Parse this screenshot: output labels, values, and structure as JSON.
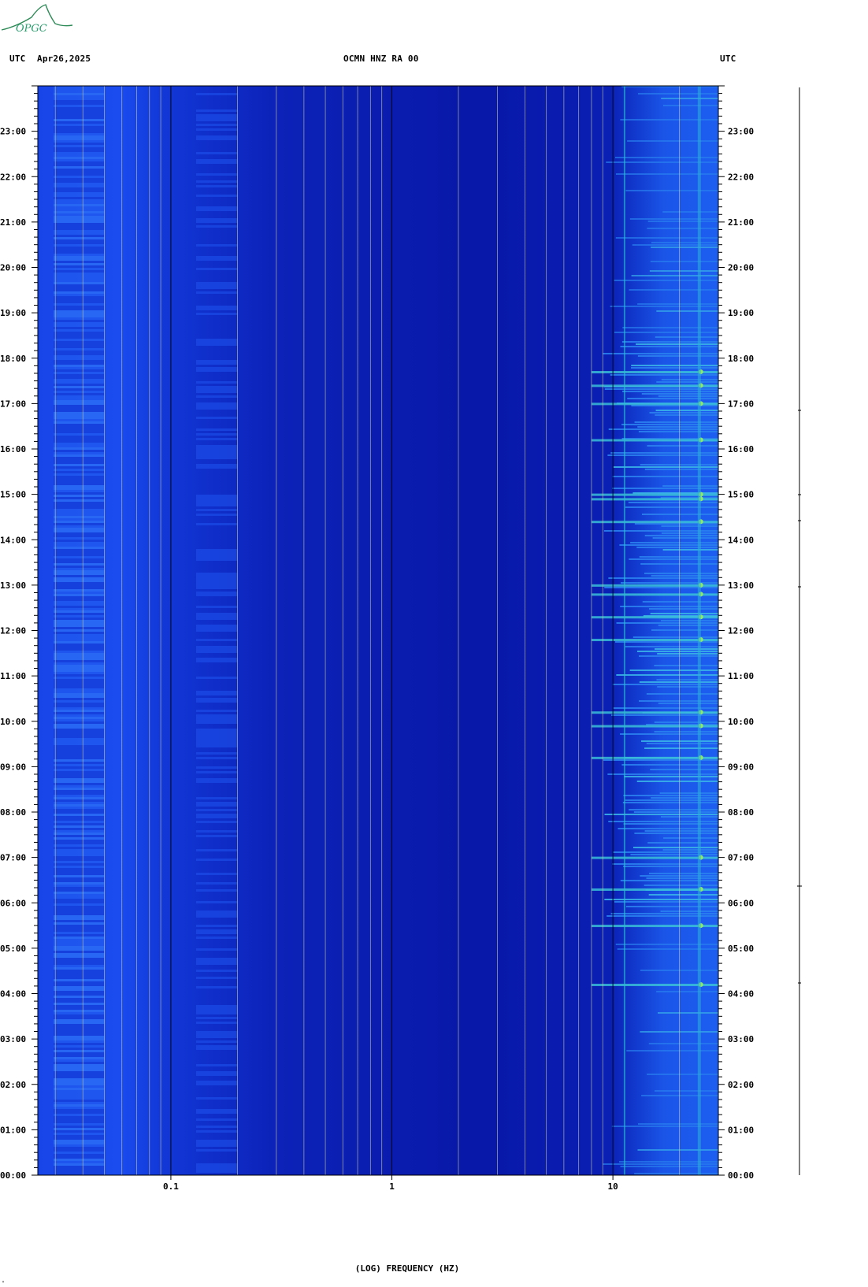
{
  "logo": {
    "text": "OPGC",
    "color": "#2e8b57"
  },
  "header": {
    "left_tz": "UTC",
    "date": "Apr26,2025",
    "station": "OCMN HNZ RA 00",
    "right_tz": "UTC"
  },
  "chart_data": {
    "type": "heatmap",
    "title": "OCMN HNZ RA 00",
    "xlabel": "(LOG) FREQUENCY (HZ)",
    "x_scale": "log",
    "x_range_hz": [
      0.025,
      30
    ],
    "x_tick_labels": [
      {
        "value": 0.1,
        "label": "0.1"
      },
      {
        "value": 1,
        "label": "1"
      },
      {
        "value": 10,
        "label": "10"
      }
    ],
    "y_range_hours": [
      0,
      24
    ],
    "y_tick_labels": [
      "00:00",
      "01:00",
      "02:00",
      "03:00",
      "04:00",
      "05:00",
      "06:00",
      "07:00",
      "08:00",
      "09:00",
      "10:00",
      "11:00",
      "12:00",
      "13:00",
      "14:00",
      "15:00",
      "16:00",
      "17:00",
      "18:00",
      "19:00",
      "20:00",
      "21:00",
      "22:00",
      "23:00"
    ],
    "colors": {
      "background": "#0a1aa8",
      "low_band": "#1a4cf0",
      "high_noise": "#2a8cf0",
      "peak": "#40e0a0",
      "grid": "#c8c8a0"
    },
    "high_frequency_events_utc_hour": [
      4.2,
      5.5,
      6.3,
      7.0,
      9.2,
      9.9,
      10.2,
      11.8,
      12.3,
      12.8,
      13.0,
      14.4,
      14.9,
      15.0,
      16.2,
      17.0,
      17.4,
      17.7
    ]
  },
  "corner_mark": "\""
}
